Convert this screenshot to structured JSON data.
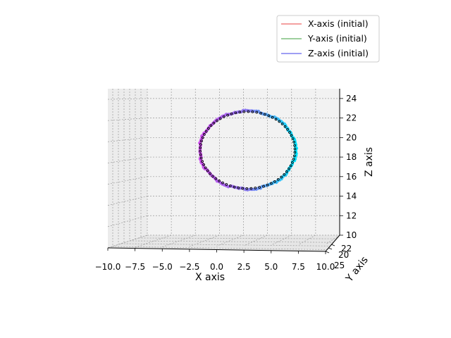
{
  "chart_data": {
    "type": "scatter",
    "projection": "3d",
    "title": "",
    "xlabel": "X axis",
    "ylabel": "Y axis",
    "zlabel": "Z axis",
    "xlim": [
      -10,
      10
    ],
    "ylim": [
      20,
      25
    ],
    "zlim": [
      10,
      25
    ],
    "grid": true,
    "legend_position": "top-right",
    "x_ticks": [
      "−10.0",
      "−7.5",
      "−5.0",
      "−2.5",
      "0.0",
      "2.5",
      "5.0",
      "7.5",
      "10.0"
    ],
    "y_ticks": [
      "20",
      "22",
      "25"
    ],
    "y_tick_labels_shown": [
      "20",
      "22",
      "25"
    ],
    "z_ticks": [
      "10",
      "12",
      "14",
      "16",
      "18",
      "20",
      "22",
      "24"
    ],
    "series": [
      {
        "name": "X-axis (initial)",
        "color": "#f08080"
      },
      {
        "name": "Y-axis (initial)",
        "color": "#7fbf7f"
      },
      {
        "name": "Z-axis (initial)",
        "color": "#7f7ff0"
      }
    ],
    "trajectory": {
      "shape": "circle",
      "center_x": 0.5,
      "center_z": 18.5,
      "radius_x": 5.0,
      "radius_z": 4.0,
      "colormap": [
        "#00e5ff",
        "#8a7cf0",
        "#d04cf0"
      ],
      "marker_color": "#000000"
    }
  }
}
